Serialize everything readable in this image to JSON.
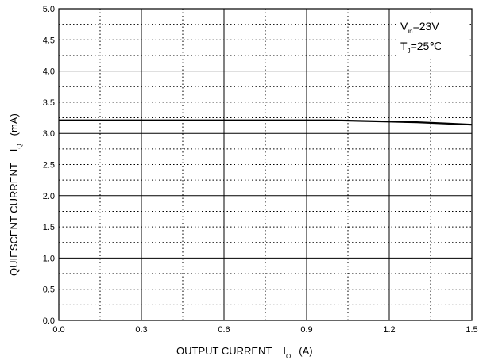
{
  "chart_data": {
    "type": "line",
    "title": "",
    "xlabel": {
      "main": "OUTPUT CURRENT",
      "symbol": "I",
      "sub": "O",
      "unit": "(A)"
    },
    "ylabel": {
      "main": "QUIESCENT CURRENT",
      "symbol": "I",
      "sub": "Q",
      "unit": "(mA)"
    },
    "xlim": [
      0.0,
      1.5
    ],
    "ylim": [
      0.0,
      5.0
    ],
    "x_ticks": [
      "0.0",
      "0.3",
      "0.6",
      "0.9",
      "1.2",
      "1.5"
    ],
    "y_ticks": [
      "0.0",
      "0.5",
      "1.0",
      "1.5",
      "2.0",
      "2.5",
      "3.0",
      "3.5",
      "4.0",
      "4.5",
      "5.0"
    ],
    "grid": {
      "major_solid": true,
      "minor_dotted": true
    },
    "series": [
      {
        "x": [
          0.0,
          0.15,
          0.3,
          0.45,
          0.6,
          0.75,
          0.9,
          1.0,
          1.1,
          1.2,
          1.3,
          1.4,
          1.5
        ],
        "y": [
          3.21,
          3.21,
          3.21,
          3.21,
          3.21,
          3.21,
          3.21,
          3.21,
          3.2,
          3.19,
          3.18,
          3.16,
          3.14
        ]
      }
    ],
    "annotations": [
      {
        "symbol": "V",
        "sub": "in",
        "text": "=23V"
      },
      {
        "symbol": "T",
        "sub": "J",
        "text": "=25℃"
      }
    ],
    "annotation_position": "top-right"
  }
}
